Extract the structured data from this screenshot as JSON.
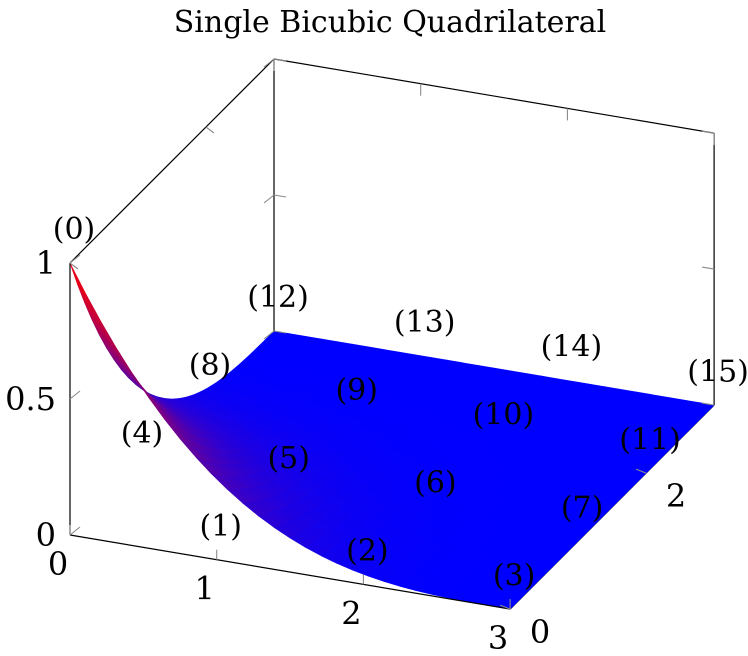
{
  "chart_data": {
    "type": "surface",
    "title": "Single Bicubic Quadrilateral",
    "xlabel": "",
    "ylabel": "",
    "zlabel": "",
    "x_ticks": [
      "0",
      "1",
      "2",
      "3"
    ],
    "y_ticks": [
      "0",
      "2"
    ],
    "z_ticks": [
      "0",
      "0.5",
      "1"
    ],
    "xlim": [
      0,
      3
    ],
    "ylim": [
      0,
      3
    ],
    "zlim": [
      0,
      1
    ],
    "colormap": [
      "#ff0000",
      "#0000ff"
    ],
    "control_points": [
      {
        "label": "(0)",
        "x": 0,
        "y": 0,
        "z": 1
      },
      {
        "label": "(1)",
        "x": 1,
        "y": 0,
        "z": 0
      },
      {
        "label": "(2)",
        "x": 2,
        "y": 0,
        "z": 0
      },
      {
        "label": "(3)",
        "x": 3,
        "y": 0,
        "z": 0
      },
      {
        "label": "(4)",
        "x": 0,
        "y": 1,
        "z": 0
      },
      {
        "label": "(5)",
        "x": 1,
        "y": 1,
        "z": 0
      },
      {
        "label": "(6)",
        "x": 2,
        "y": 1,
        "z": 0
      },
      {
        "label": "(7)",
        "x": 3,
        "y": 1,
        "z": 0
      },
      {
        "label": "(8)",
        "x": 0,
        "y": 2,
        "z": 0
      },
      {
        "label": "(9)",
        "x": 1,
        "y": 2,
        "z": 0
      },
      {
        "label": "(10)",
        "x": 2,
        "y": 2,
        "z": 0
      },
      {
        "label": "(11)",
        "x": 3,
        "y": 2,
        "z": 0
      },
      {
        "label": "(12)",
        "x": 0,
        "y": 3,
        "z": 0
      },
      {
        "label": "(13)",
        "x": 1,
        "y": 3,
        "z": 0
      },
      {
        "label": "(14)",
        "x": 2,
        "y": 3,
        "z": 0
      },
      {
        "label": "(15)",
        "x": 3,
        "y": 3,
        "z": 0
      }
    ]
  }
}
